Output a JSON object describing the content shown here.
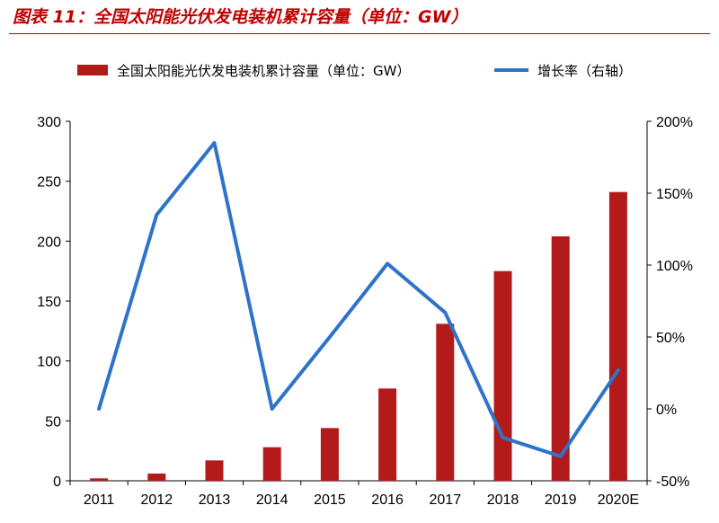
{
  "figure_title": "图表 11：全国太阳能光伏发电装机累计容量（单位：GW）",
  "colors": {
    "bar": "#b31b1b",
    "line": "#2f73c9",
    "accent": "#c00000",
    "axis": "#000000"
  },
  "chart_data": {
    "type": "bar+line",
    "categories": [
      "2011",
      "2012",
      "2013",
      "2014",
      "2015",
      "2016",
      "2017",
      "2018",
      "2019",
      "2020E"
    ],
    "series": [
      {
        "name": "全国太阳能光伏发电装机累计容量（单位：GW）",
        "type": "bar",
        "axis": "left",
        "values": [
          2,
          6,
          17,
          28,
          44,
          77,
          131,
          175,
          204,
          241
        ]
      },
      {
        "name": "增长率（右轴）",
        "type": "line",
        "axis": "right",
        "values": [
          0,
          135,
          185,
          0,
          50,
          101,
          67,
          -20,
          -33,
          27
        ]
      }
    ],
    "y_left": {
      "ylim": [
        0,
        300
      ],
      "ticks": [
        "0",
        "50",
        "100",
        "150",
        "200",
        "250",
        "300"
      ]
    },
    "y_right": {
      "ylim": [
        -50,
        200
      ],
      "ticks": [
        "-50%",
        "0%",
        "50%",
        "100%",
        "150%",
        "200%"
      ]
    },
    "legend_position": "top",
    "grid": false
  }
}
